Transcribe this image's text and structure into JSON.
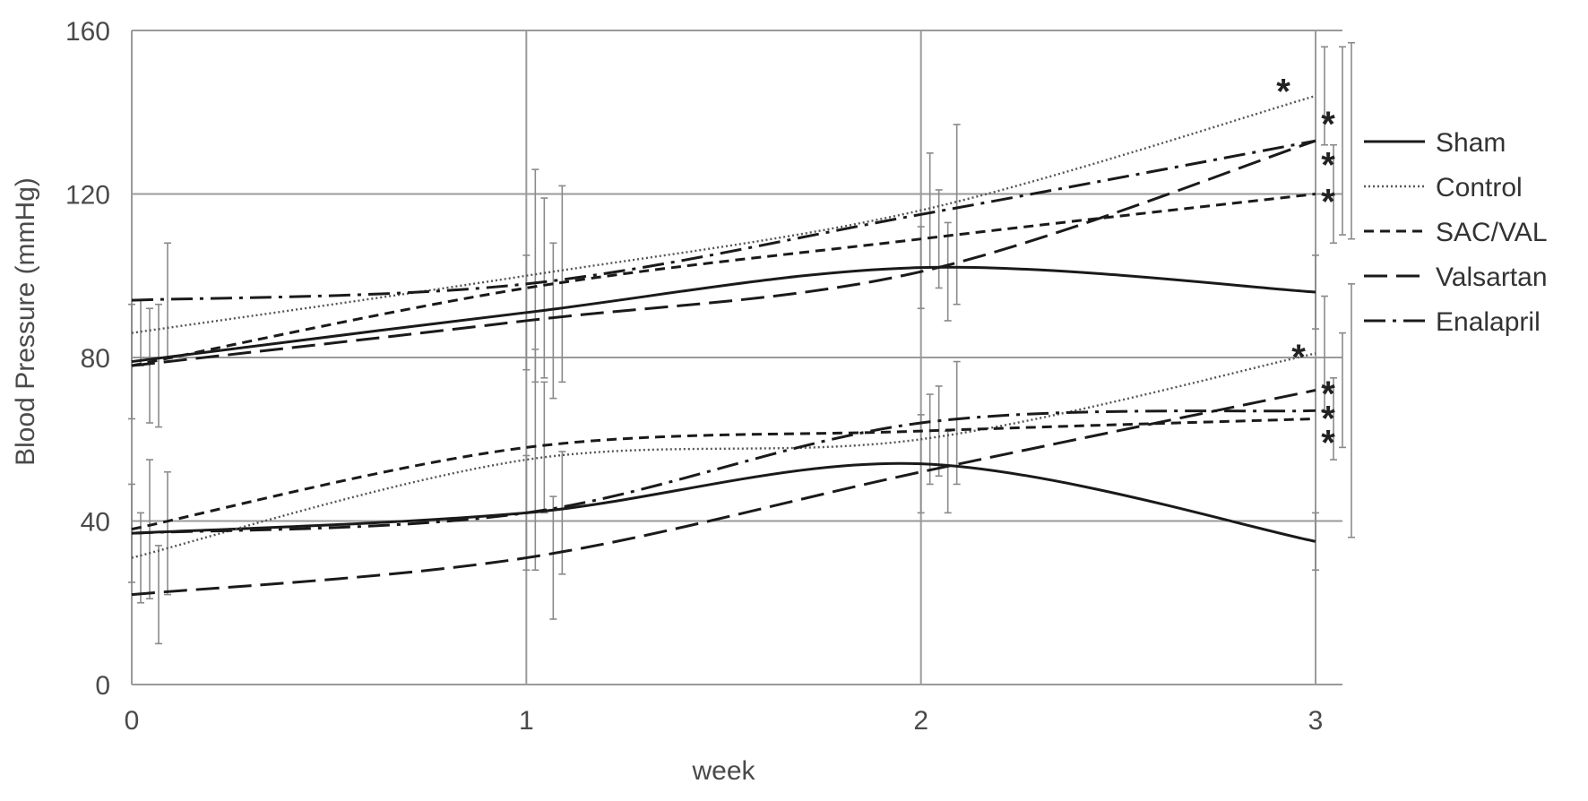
{
  "chart_data": {
    "type": "line",
    "title": "",
    "xlabel": "week",
    "ylabel": "Blood Pressure (mmHg)",
    "x": [
      0,
      1,
      2,
      3
    ],
    "x_tick_labels": [
      "0",
      "1",
      "2",
      "3"
    ],
    "xlim": [
      0,
      3
    ],
    "ylim": [
      0,
      160
    ],
    "y_ticks": [
      0,
      40,
      80,
      120,
      160
    ],
    "y_tick_labels": [
      "0",
      "40",
      "80",
      "120",
      "160"
    ],
    "grid": true,
    "legend_position": "right",
    "series": [
      {
        "name": "Sham",
        "dash": "solid",
        "groups": [
          {
            "values": [
              79,
              91,
              102,
              96
            ],
            "error": [
              14,
              14,
              10,
              9
            ]
          },
          {
            "values": [
              37,
              42,
              54,
              35
            ],
            "error": [
              12,
              14,
              12,
              7
            ]
          }
        ]
      },
      {
        "name": "Control",
        "dash": "dotted",
        "groups": [
          {
            "values": [
              86,
              100,
              116,
              144
            ],
            "error": [
              8,
              26,
              14,
              12
            ]
          },
          {
            "values": [
              31,
              55,
              60,
              81
            ],
            "error": [
              11,
              27,
              11,
              14
            ]
          }
        ]
      },
      {
        "name": "SAC/VAL",
        "dash": "short-dash",
        "groups": [
          {
            "values": [
              78,
              97,
              109,
              120
            ],
            "error": [
              14,
              22,
              12,
              12
            ]
          },
          {
            "values": [
              38,
              58,
              62,
              65
            ],
            "error": [
              17,
              16,
              11,
              10
            ]
          }
        ]
      },
      {
        "name": "Valsartan",
        "dash": "long-dash",
        "groups": [
          {
            "values": [
              78,
              89,
              101,
              133
            ],
            "error": [
              15,
              19,
              12,
              23
            ]
          },
          {
            "values": [
              22,
              31,
              52,
              72
            ],
            "error": [
              12,
              15,
              10,
              14
            ]
          }
        ]
      },
      {
        "name": "Enalapril",
        "dash": "dash-dot",
        "groups": [
          {
            "values": [
              94,
              98,
              115,
              133
            ],
            "error": [
              14,
              24,
              22,
              24
            ]
          },
          {
            "values": [
              37,
              42,
              64,
              67
            ],
            "error": [
              15,
              15,
              15,
              31
            ]
          }
        ]
      }
    ],
    "annotations": [
      {
        "text": "*",
        "x": 3,
        "y": 147
      },
      {
        "text": "*",
        "x": 3,
        "y": 139
      },
      {
        "text": "*",
        "x": 3,
        "y": 129
      },
      {
        "text": "*",
        "x": 3,
        "y": 120
      },
      {
        "text": "*",
        "x": 3,
        "y": 82
      },
      {
        "text": "*",
        "x": 3,
        "y": 73
      },
      {
        "text": "*",
        "x": 3,
        "y": 67
      },
      {
        "text": "*",
        "x": 3,
        "y": 61
      }
    ]
  }
}
